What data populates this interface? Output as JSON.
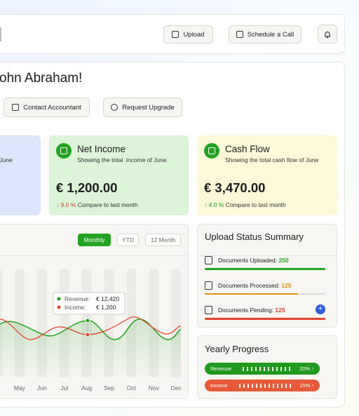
{
  "topbar": {
    "buttons": [
      "Upload",
      "Schedule a Call"
    ]
  },
  "greeting": "ohn Abraham!",
  "actions": [
    "Contact Accountant",
    "Request Upgrade"
  ],
  "cards": [
    {
      "subtitle": "of June"
    },
    {
      "title": "Net Income",
      "subtitle": "Showing the total  income of June",
      "amount": "€ 1,200.00",
      "change": "↓ 9.0 %",
      "compare": "Compare to last month"
    },
    {
      "title": "Cash Flow",
      "subtitle": "Showing the total cash flow of June",
      "amount": "€ 3,470.00",
      "change": "↑ 4.0 %",
      "compare": "Compare to last month"
    }
  ],
  "chart": {
    "tabs": [
      "Monthly",
      "YTD",
      "12 Month"
    ],
    "months": [
      "r",
      "May",
      "Jun",
      "Jul",
      "Aug",
      "Sep",
      "Oct",
      "Nov",
      "Dec"
    ],
    "tooltip": {
      "rows": [
        {
          "label": "Revenue:",
          "value": "€ 12,420"
        },
        {
          "label": "Income:",
          "value": "€ 1,200"
        }
      ]
    }
  },
  "upload_status": {
    "title": "Upload Status Summary",
    "items": [
      {
        "label": "Documents Uploaded:",
        "count": "250"
      },
      {
        "label": "Documents Processed:",
        "count": "125"
      },
      {
        "label": "Documents Pending:",
        "count": "125"
      }
    ]
  },
  "yearly_progress": {
    "title": "Yearly Progress",
    "items": [
      {
        "label": "Revenue",
        "value": "20% ↑"
      },
      {
        "label": "Income",
        "value": "15% ↑"
      }
    ]
  }
}
